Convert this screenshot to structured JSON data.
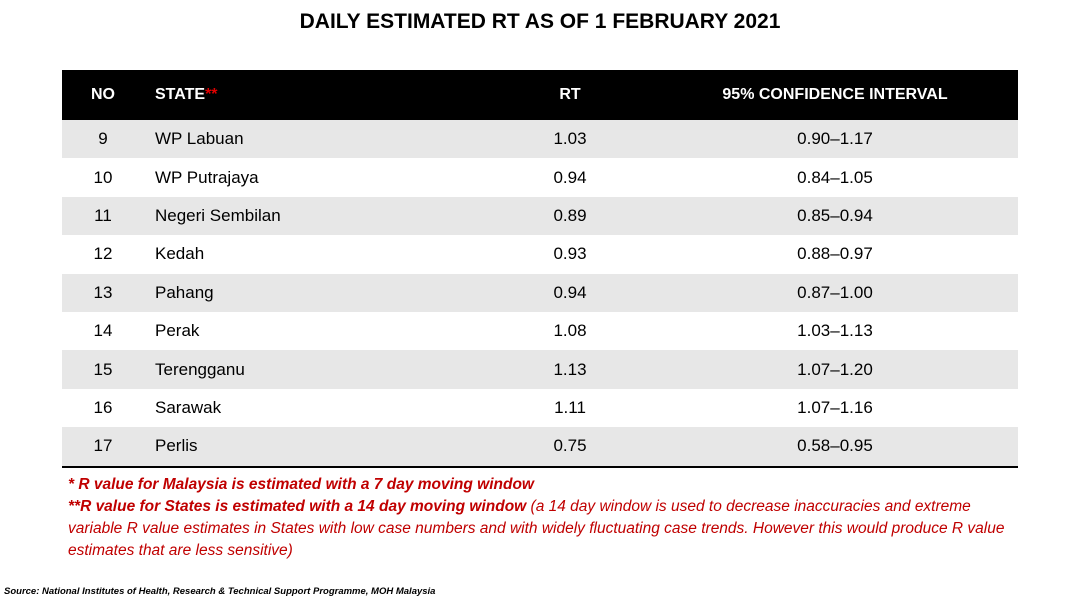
{
  "title": "DAILY ESTIMATED RT AS OF 1 FEBRUARY 2021",
  "table": {
    "header": {
      "no": "NO",
      "state": "STATE",
      "state_mark": "**",
      "rt": "RT",
      "ci": "95% CONFIDENCE INTERVAL"
    },
    "rows": [
      [
        "9",
        "WP Labuan",
        "1.03",
        "0.90–1.17"
      ],
      [
        "10",
        "WP Putrajaya",
        "0.94",
        "0.84–1.05"
      ],
      [
        "11",
        "Negeri Sembilan",
        "0.89",
        "0.85–0.94"
      ],
      [
        "12",
        "Kedah",
        "0.93",
        "0.88–0.97"
      ],
      [
        "13",
        "Pahang",
        "0.94",
        "0.87–1.00"
      ],
      [
        "14",
        "Perak",
        "1.08",
        "1.03–1.13"
      ],
      [
        "15",
        "Terengganu",
        "1.13",
        "1.07–1.20"
      ],
      [
        "16",
        "Sarawak",
        "1.11",
        "1.07–1.16"
      ],
      [
        "17",
        "Perlis",
        "0.75",
        "0.58–0.95"
      ]
    ]
  },
  "notes": {
    "note1": "*  R value for Malaysia is estimated with a 7 day moving window",
    "note2_bold": "**R value for States is estimated with a 14 day moving window",
    "note2_rest": " (a 14 day window is used to decrease inaccuracies and extreme variable R value estimates in States with low case numbers and with widely fluctuating case trends. However this would produce R value estimates that are less sensitive)"
  },
  "source": "Source: National Institutes of Health, Research & Technical Support Programme, MOH Malaysia"
}
